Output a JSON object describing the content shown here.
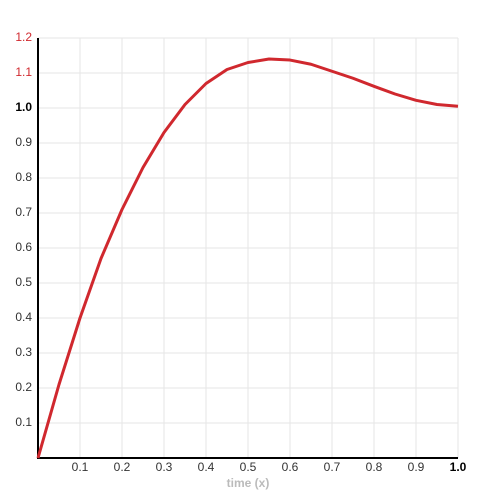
{
  "chart_data": {
    "type": "line",
    "x_label": "time (x)",
    "x": [
      0,
      0.05,
      0.1,
      0.15,
      0.2,
      0.25,
      0.3,
      0.35,
      0.4,
      0.45,
      0.5,
      0.55,
      0.6,
      0.65,
      0.7,
      0.75,
      0.8,
      0.85,
      0.9,
      0.95,
      1.0
    ],
    "values": [
      0,
      0.21,
      0.4,
      0.57,
      0.71,
      0.83,
      0.93,
      1.01,
      1.07,
      1.11,
      1.13,
      1.14,
      1.137,
      1.125,
      1.105,
      1.085,
      1.062,
      1.04,
      1.022,
      1.01,
      1.005
    ],
    "color": "#d0282e",
    "xlim": [
      0,
      1
    ],
    "ylim": [
      0,
      1.2
    ],
    "xticks": [
      0.1,
      0.2,
      0.3,
      0.4,
      0.5,
      0.6,
      0.7,
      0.8,
      0.9,
      {
        "value": 1,
        "label": "1.0"
      }
    ],
    "xtick_bold": [
      false,
      false,
      false,
      false,
      false,
      false,
      false,
      false,
      false,
      true
    ],
    "yticks": [
      0.1,
      0.2,
      0.3,
      0.4,
      0.5,
      0.6,
      0.7,
      0.8,
      0.9,
      {
        "value": 1,
        "label": "1.0"
      },
      1.1,
      1.2
    ],
    "ytick_bold": [
      false,
      false,
      false,
      false,
      false,
      false,
      false,
      false,
      false,
      true,
      false,
      false
    ],
    "ytick_colors": [
      "#333",
      "#333",
      "#333",
      "#333",
      "#333",
      "#333",
      "#333",
      "#333",
      "#333",
      "#000",
      "#d0282e",
      "#d0282e"
    ],
    "grid": true
  }
}
